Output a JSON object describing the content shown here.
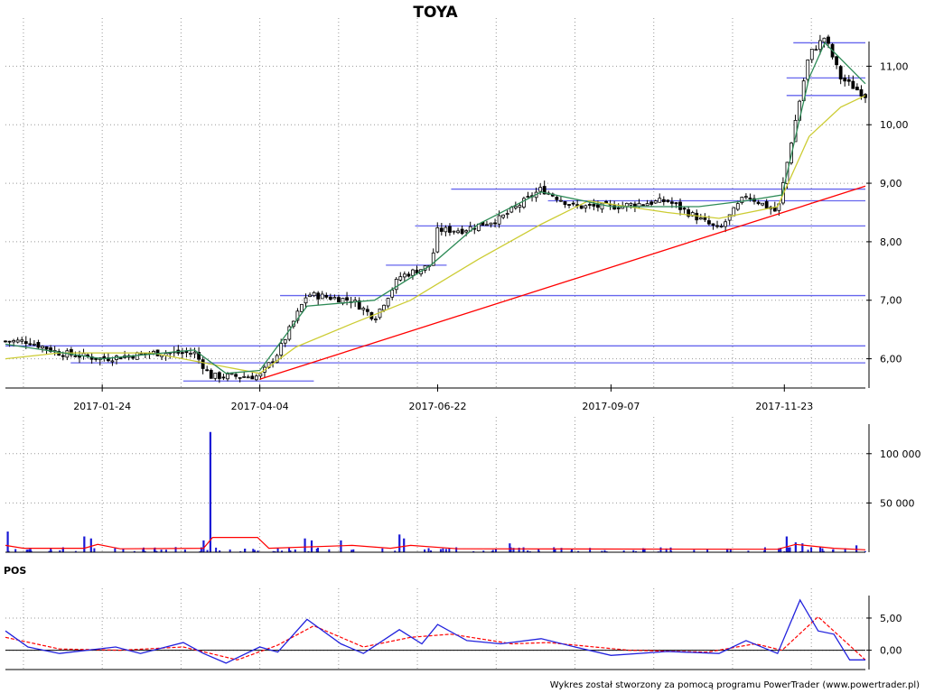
{
  "title": "TOYA",
  "credit": "Wykres został stworzony za pomocą programu PowerTrader (www.powertrader.pl)",
  "colors": {
    "price_bar": "#000000",
    "sma_short": "#2e8b57",
    "sma_long": "#cccc33",
    "support_lines": "#6666ee",
    "trend_line": "#ff0000",
    "volume_bar": "#1a1ad6",
    "volume_avg": "#ff0000",
    "pos_line": "#2222dd",
    "pos_signal": "#ff0000"
  },
  "chart_data": [
    {
      "panel": "price",
      "type": "candlestick",
      "title": "TOYA",
      "date_range": [
        "2016-12-12",
        "2017-12-29"
      ],
      "x_tick_labels": [
        "2017-01-24",
        "2017-04-04",
        "2017-06-22",
        "2017-09-07",
        "2017-11-23"
      ],
      "y_tick_labels": [
        "6,00",
        "7,00",
        "8,00",
        "9,00",
        "10,00",
        "11,00"
      ],
      "ylim": [
        5.5,
        11.7
      ],
      "grid": true,
      "close_keypoints": [
        {
          "date": "2016-12-12",
          "value": 6.3
        },
        {
          "date": "2016-12-22",
          "value": 6.3
        },
        {
          "date": "2017-01-05",
          "value": 6.1
        },
        {
          "date": "2017-01-24",
          "value": 6.0
        },
        {
          "date": "2017-02-15",
          "value": 6.1
        },
        {
          "date": "2017-03-06",
          "value": 6.1
        },
        {
          "date": "2017-03-13",
          "value": 5.7
        },
        {
          "date": "2017-04-04",
          "value": 5.7
        },
        {
          "date": "2017-04-12",
          "value": 6.1
        },
        {
          "date": "2017-04-25",
          "value": 7.1
        },
        {
          "date": "2017-05-15",
          "value": 7.0
        },
        {
          "date": "2017-05-25",
          "value": 6.7
        },
        {
          "date": "2017-06-05",
          "value": 7.4
        },
        {
          "date": "2017-06-19",
          "value": 7.6
        },
        {
          "date": "2017-06-22",
          "value": 8.2
        },
        {
          "date": "2017-07-03",
          "value": 8.2
        },
        {
          "date": "2017-07-20",
          "value": 8.4
        },
        {
          "date": "2017-08-07",
          "value": 8.9
        },
        {
          "date": "2017-08-22",
          "value": 8.6
        },
        {
          "date": "2017-09-07",
          "value": 8.6
        },
        {
          "date": "2017-10-02",
          "value": 8.7
        },
        {
          "date": "2017-10-25",
          "value": 8.2
        },
        {
          "date": "2017-11-06",
          "value": 8.8
        },
        {
          "date": "2017-11-20",
          "value": 8.5
        },
        {
          "date": "2017-11-27",
          "value": 9.9
        },
        {
          "date": "2017-12-04",
          "value": 11.2
        },
        {
          "date": "2017-12-11",
          "value": 11.5
        },
        {
          "date": "2017-12-18",
          "value": 10.8
        },
        {
          "date": "2017-12-29",
          "value": 10.5
        }
      ],
      "sma_short_keypoints": [
        {
          "date": "2016-12-12",
          "value": 6.25
        },
        {
          "date": "2017-01-24",
          "value": 6.0
        },
        {
          "date": "2017-03-06",
          "value": 6.15
        },
        {
          "date": "2017-03-20",
          "value": 5.75
        },
        {
          "date": "2017-04-04",
          "value": 5.8
        },
        {
          "date": "2017-04-25",
          "value": 6.9
        },
        {
          "date": "2017-05-25",
          "value": 7.0
        },
        {
          "date": "2017-06-19",
          "value": 7.6
        },
        {
          "date": "2017-07-10",
          "value": 8.3
        },
        {
          "date": "2017-08-07",
          "value": 8.85
        },
        {
          "date": "2017-09-07",
          "value": 8.6
        },
        {
          "date": "2017-10-16",
          "value": 8.6
        },
        {
          "date": "2017-11-06",
          "value": 8.7
        },
        {
          "date": "2017-11-22",
          "value": 8.8
        },
        {
          "date": "2017-12-04",
          "value": 10.8
        },
        {
          "date": "2017-12-11",
          "value": 11.4
        },
        {
          "date": "2017-12-29",
          "value": 10.7
        }
      ],
      "sma_long_keypoints": [
        {
          "date": "2016-12-12",
          "value": 6.0
        },
        {
          "date": "2017-01-05",
          "value": 6.1
        },
        {
          "date": "2017-02-15",
          "value": 6.1
        },
        {
          "date": "2017-04-04",
          "value": 5.75
        },
        {
          "date": "2017-04-20",
          "value": 6.2
        },
        {
          "date": "2017-05-15",
          "value": 6.6
        },
        {
          "date": "2017-06-10",
          "value": 7.0
        },
        {
          "date": "2017-07-10",
          "value": 7.7
        },
        {
          "date": "2017-08-07",
          "value": 8.3
        },
        {
          "date": "2017-08-28",
          "value": 8.7
        },
        {
          "date": "2017-10-02",
          "value": 8.5
        },
        {
          "date": "2017-10-25",
          "value": 8.4
        },
        {
          "date": "2017-11-20",
          "value": 8.6
        },
        {
          "date": "2017-12-04",
          "value": 9.8
        },
        {
          "date": "2017-12-18",
          "value": 10.3
        },
        {
          "date": "2017-12-29",
          "value": 10.5
        }
      ],
      "support_resistance_levels": [
        {
          "value": 11.4,
          "from": "2017-11-27",
          "to": "2017-12-29"
        },
        {
          "value": 10.8,
          "from": "2017-11-24",
          "to": "2017-12-29"
        },
        {
          "value": 10.5,
          "from": "2017-11-24",
          "to": "2017-12-29"
        },
        {
          "value": 8.9,
          "from": "2017-06-28",
          "to": "2017-12-29"
        },
        {
          "value": 8.7,
          "from": "2017-08-10",
          "to": "2017-12-29"
        },
        {
          "value": 8.27,
          "from": "2017-06-12",
          "to": "2017-12-29"
        },
        {
          "value": 7.6,
          "from": "2017-05-30",
          "to": "2017-06-26"
        },
        {
          "value": 7.08,
          "from": "2017-04-13",
          "to": "2017-12-29"
        },
        {
          "value": 6.22,
          "from": "2016-12-12",
          "to": "2017-12-29"
        },
        {
          "value": 5.93,
          "from": "2017-01-10",
          "to": "2017-12-29"
        },
        {
          "value": 5.62,
          "from": "2017-03-01",
          "to": "2017-04-28"
        }
      ],
      "trend_line": [
        {
          "date": "2017-04-04",
          "value": 5.65
        },
        {
          "date": "2017-12-29",
          "value": 8.95
        }
      ]
    },
    {
      "panel": "volume",
      "type": "bar",
      "y_tick_labels": [
        "50 000",
        "100 000"
      ],
      "ylim": [
        0,
        130000
      ],
      "grid": true,
      "spikes": [
        {
          "date": "2016-12-13",
          "value": 21000
        },
        {
          "date": "2017-01-16",
          "value": 16000
        },
        {
          "date": "2017-01-19",
          "value": 14000
        },
        {
          "date": "2017-03-13",
          "value": 122000
        },
        {
          "date": "2017-03-10",
          "value": 12000
        },
        {
          "date": "2017-04-24",
          "value": 14000
        },
        {
          "date": "2017-04-27",
          "value": 12000
        },
        {
          "date": "2017-05-10",
          "value": 12000
        },
        {
          "date": "2017-06-05",
          "value": 18000
        },
        {
          "date": "2017-06-07",
          "value": 14000
        },
        {
          "date": "2017-07-24",
          "value": 9000
        },
        {
          "date": "2017-11-24",
          "value": 16000
        },
        {
          "date": "2017-11-28",
          "value": 10000
        },
        {
          "date": "2017-12-01",
          "value": 9000
        },
        {
          "date": "2017-12-25",
          "value": 7000
        }
      ],
      "average_keypoints": [
        {
          "date": "2016-12-12",
          "value": 7000
        },
        {
          "date": "2016-12-20",
          "value": 4000
        },
        {
          "date": "2017-01-16",
          "value": 4000
        },
        {
          "date": "2017-01-22",
          "value": 8000
        },
        {
          "date": "2017-02-01",
          "value": 3500
        },
        {
          "date": "2017-03-10",
          "value": 4000
        },
        {
          "date": "2017-03-14",
          "value": 15000
        },
        {
          "date": "2017-04-03",
          "value": 15000
        },
        {
          "date": "2017-04-08",
          "value": 4000
        },
        {
          "date": "2017-05-15",
          "value": 7000
        },
        {
          "date": "2017-06-01",
          "value": 4000
        },
        {
          "date": "2017-06-10",
          "value": 7000
        },
        {
          "date": "2017-07-01",
          "value": 3500
        },
        {
          "date": "2017-11-20",
          "value": 3000
        },
        {
          "date": "2017-11-28",
          "value": 8000
        },
        {
          "date": "2017-12-15",
          "value": 4000
        },
        {
          "date": "2017-12-29",
          "value": 2500
        }
      ]
    },
    {
      "panel": "oscillator",
      "type": "line",
      "label": "POS",
      "y_tick_labels": [
        "0,00",
        "5,00"
      ],
      "ylim": [
        -3,
        8.5
      ],
      "zero_line": true,
      "grid": true,
      "pos_keypoints": [
        {
          "date": "2016-12-12",
          "value": 3.0
        },
        {
          "date": "2016-12-22",
          "value": 0.5
        },
        {
          "date": "2017-01-05",
          "value": -0.5
        },
        {
          "date": "2017-01-30",
          "value": 0.5
        },
        {
          "date": "2017-02-10",
          "value": -0.5
        },
        {
          "date": "2017-03-01",
          "value": 1.2
        },
        {
          "date": "2017-03-10",
          "value": -0.5
        },
        {
          "date": "2017-03-20",
          "value": -2.0
        },
        {
          "date": "2017-04-04",
          "value": 0.5
        },
        {
          "date": "2017-04-12",
          "value": -0.3
        },
        {
          "date": "2017-04-25",
          "value": 4.8
        },
        {
          "date": "2017-05-10",
          "value": 1.0
        },
        {
          "date": "2017-05-20",
          "value": -0.5
        },
        {
          "date": "2017-06-05",
          "value": 3.2
        },
        {
          "date": "2017-06-15",
          "value": 1.0
        },
        {
          "date": "2017-06-22",
          "value": 4.0
        },
        {
          "date": "2017-07-05",
          "value": 1.5
        },
        {
          "date": "2017-07-20",
          "value": 1.0
        },
        {
          "date": "2017-08-07",
          "value": 1.8
        },
        {
          "date": "2017-08-22",
          "value": 0.5
        },
        {
          "date": "2017-09-07",
          "value": -0.8
        },
        {
          "date": "2017-10-02",
          "value": -0.2
        },
        {
          "date": "2017-10-25",
          "value": -0.5
        },
        {
          "date": "2017-11-06",
          "value": 1.5
        },
        {
          "date": "2017-11-20",
          "value": -0.5
        },
        {
          "date": "2017-11-30",
          "value": 7.8
        },
        {
          "date": "2017-12-08",
          "value": 3.0
        },
        {
          "date": "2017-12-15",
          "value": 2.5
        },
        {
          "date": "2017-12-22",
          "value": -1.5
        },
        {
          "date": "2017-12-29",
          "value": -1.5
        }
      ],
      "signal_keypoints": [
        {
          "date": "2016-12-12",
          "value": 2.0
        },
        {
          "date": "2017-01-05",
          "value": 0.2
        },
        {
          "date": "2017-02-01",
          "value": 0.0
        },
        {
          "date": "2017-03-01",
          "value": 0.5
        },
        {
          "date": "2017-03-25",
          "value": -1.5
        },
        {
          "date": "2017-04-12",
          "value": 0.8
        },
        {
          "date": "2017-04-28",
          "value": 3.8
        },
        {
          "date": "2017-05-20",
          "value": 0.5
        },
        {
          "date": "2017-06-10",
          "value": 2.0
        },
        {
          "date": "2017-06-28",
          "value": 2.5
        },
        {
          "date": "2017-07-25",
          "value": 1.0
        },
        {
          "date": "2017-08-10",
          "value": 1.2
        },
        {
          "date": "2017-09-15",
          "value": 0.0
        },
        {
          "date": "2017-10-20",
          "value": -0.3
        },
        {
          "date": "2017-11-10",
          "value": 1.0
        },
        {
          "date": "2017-11-22",
          "value": 0.0
        },
        {
          "date": "2017-12-08",
          "value": 5.2
        },
        {
          "date": "2017-12-29",
          "value": -1.5
        }
      ]
    }
  ]
}
